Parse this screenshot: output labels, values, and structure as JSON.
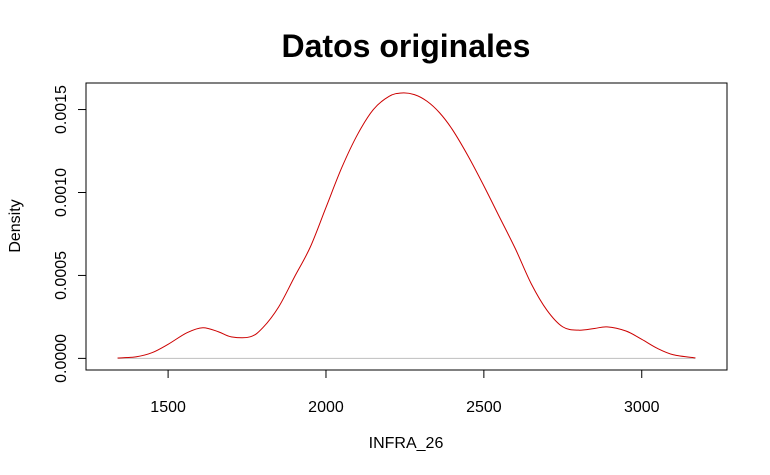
{
  "chart_data": {
    "type": "line",
    "title": "Datos originales",
    "xlabel": "INFRA_26",
    "ylabel": "Density",
    "xlim": [
      1240,
      3270
    ],
    "ylim": [
      -7e-05,
      0.00166
    ],
    "x_ticks": [
      1500,
      2000,
      2500,
      3000
    ],
    "x_tick_labels": [
      "1500",
      "2000",
      "2500",
      "3000"
    ],
    "y_ticks": [
      0,
      0.0005,
      0.001,
      0.0015
    ],
    "y_tick_labels": [
      "0.0000",
      "0.0005",
      "0.0010",
      "0.0015"
    ],
    "grid": false,
    "baseline": 0,
    "colors": {
      "line": "#cc0000",
      "baseline": "#bebebe",
      "frame": "#000000"
    },
    "series": [
      {
        "x": [
          1340,
          1400,
          1450,
          1500,
          1560,
          1610,
          1660,
          1700,
          1760,
          1800,
          1850,
          1900,
          1950,
          2000,
          2050,
          2100,
          2150,
          2200,
          2240,
          2280,
          2320,
          2360,
          2400,
          2450,
          2500,
          2550,
          2600,
          2650,
          2700,
          2750,
          2800,
          2850,
          2890,
          2950,
          3000,
          3050,
          3100,
          3170
        ],
        "y": [
          2e-06,
          1e-05,
          3.5e-05,
          8.5e-05,
          0.000155,
          0.000185,
          0.00016,
          0.00013,
          0.00013,
          0.000185,
          0.00031,
          0.00049,
          0.00067,
          0.00091,
          0.00115,
          0.00135,
          0.0015,
          0.00158,
          0.0016,
          0.00159,
          0.00155,
          0.00148,
          0.00138,
          0.00122,
          0.00104,
          0.00085,
          0.00066,
          0.00045,
          0.00029,
          0.00019,
          0.00017,
          0.00018,
          0.00019,
          0.000165,
          0.000115,
          6e-05,
          2.2e-05,
          3e-06
        ]
      }
    ]
  }
}
